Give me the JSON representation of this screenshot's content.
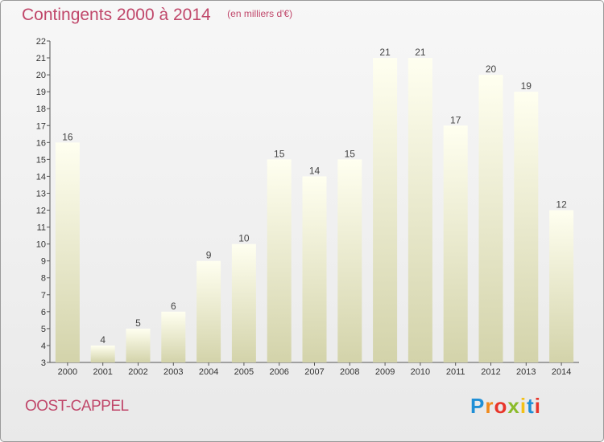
{
  "header": {
    "title": "Contingents 2000 à 2014",
    "subtitle": "(en milliers d'€)"
  },
  "footer": {
    "place": "OOST-CAPPEL",
    "logo_letters": [
      "P",
      "r",
      "o",
      "x",
      "i",
      "t",
      "i"
    ],
    "logo_colors": [
      "#1f8fd6",
      "#f08a1c",
      "#e8352a",
      "#8bbb2b",
      "#f3c117",
      "#1f8fd6",
      "#e8352a"
    ]
  },
  "colors": {
    "bar_top": "#fffff0",
    "bar_bottom": "#d3d3aa",
    "axis": "#555555",
    "title": "#c0476a"
  },
  "chart_data": {
    "type": "bar",
    "title": "Contingents 2000 à 2014",
    "subtitle": "(en milliers d'€)",
    "xlabel": "",
    "ylabel": "",
    "categories": [
      "2000",
      "2001",
      "2002",
      "2003",
      "2004",
      "2005",
      "2006",
      "2007",
      "2008",
      "2009",
      "2010",
      "2011",
      "2012",
      "2013",
      "2014"
    ],
    "values": [
      16,
      4,
      5,
      6,
      9,
      10,
      15,
      14,
      15,
      21,
      21,
      17,
      20,
      19,
      12
    ],
    "ylim": [
      3,
      22
    ],
    "yticks": [
      3,
      4,
      5,
      6,
      7,
      8,
      9,
      10,
      11,
      12,
      13,
      14,
      15,
      16,
      17,
      18,
      19,
      20,
      21,
      22
    ],
    "grid": false,
    "legend": "none"
  }
}
